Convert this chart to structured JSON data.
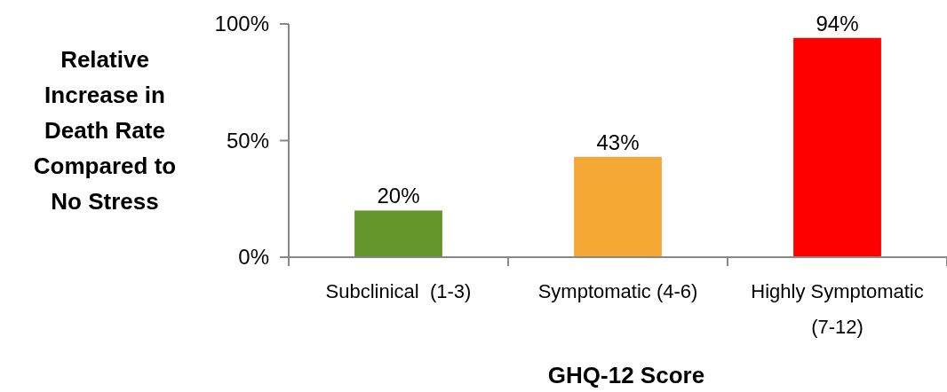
{
  "chart_data": {
    "type": "bar",
    "xlabel": "GHQ-12 Score",
    "ylabel": "Relative Increase in Death Rate Compared to No Stress",
    "categories": [
      "Subclinical  (1-3)",
      "Symptomatic (4-6)",
      "Highly Symptomatic (7-12)"
    ],
    "values": [
      20,
      43,
      94
    ],
    "colors": [
      "#62952a",
      "#f6a834",
      "#ff0000"
    ],
    "value_labels": [
      "20%",
      "43%",
      "94%"
    ],
    "ylim": [
      0,
      100
    ],
    "yticks": [
      {
        "value": 0,
        "label": "0%"
      },
      {
        "value": 50,
        "label": "50%"
      },
      {
        "value": 100,
        "label": "100%"
      }
    ],
    "grid": false
  }
}
